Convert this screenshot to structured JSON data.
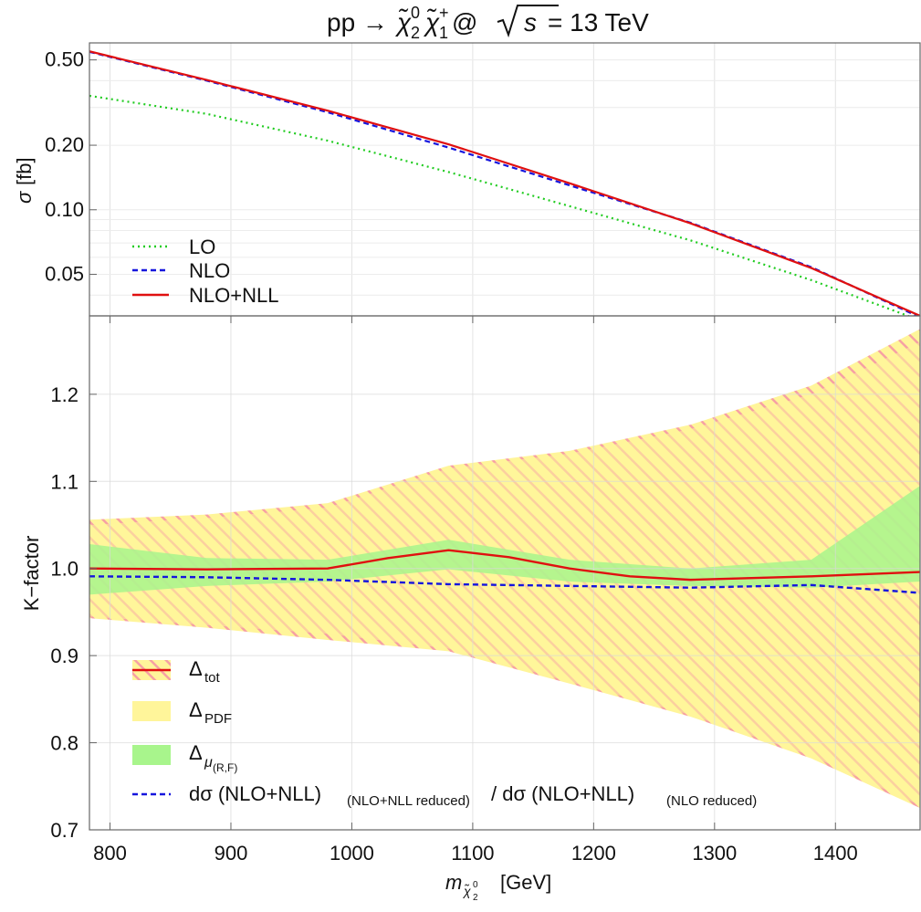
{
  "title": {
    "prefix": "pp → ",
    "p1": "χ̃",
    "p1_sub": "2",
    "p1_sup": "0",
    "p2": "χ̃",
    "p2_sub": "1",
    "p2_sup": "+",
    "at": " @ ",
    "sqrt_arg": "s",
    "energy": " = 13 TeV"
  },
  "x_axis": {
    "label_symbol": "m",
    "label_sub": "χ̃",
    "label_subsub": "2",
    "label_subsup": "0",
    "label_unit": "[GeV]"
  },
  "chart_data": [
    {
      "type": "line",
      "panel": "top",
      "ylabel_symbol": "σ",
      "ylabel_unit": "[fb]",
      "yscale": "log",
      "xlim": [
        783,
        1470
      ],
      "ylim": [
        0.032,
        0.6
      ],
      "grid": true,
      "legend_position": "bottom-left",
      "x": [
        783,
        880,
        980,
        1080,
        1180,
        1280,
        1380,
        1470
      ],
      "series": [
        {
          "name": "LO",
          "style": "dotted",
          "color": "#22cc22",
          "values": [
            0.34,
            0.28,
            0.21,
            0.15,
            0.104,
            0.072,
            0.047,
            0.0305
          ]
        },
        {
          "name": "NLO",
          "style": "dashed",
          "color": "#1515dd",
          "values": [
            0.545,
            0.4,
            0.285,
            0.195,
            0.13,
            0.087,
            0.054,
            0.0315
          ]
        },
        {
          "name": "NLO+NLL",
          "style": "solid",
          "color": "#e01010",
          "values": [
            0.548,
            0.403,
            0.29,
            0.202,
            0.133,
            0.0865,
            0.0535,
            0.032
          ]
        }
      ],
      "yticks": [
        0.05,
        0.1,
        0.2,
        0.5
      ],
      "ytick_labels": [
        "0.05",
        "0.10",
        "0.20",
        "0.50"
      ]
    },
    {
      "type": "line",
      "panel": "bottom",
      "ylabel": "K−factor",
      "xlim": [
        783,
        1470
      ],
      "ylim": [
        0.7,
        1.29
      ],
      "grid": true,
      "legend_position": "bottom-left",
      "xticks": [
        800,
        900,
        1000,
        1100,
        1200,
        1300,
        1400
      ],
      "xtick_labels": [
        "800",
        "900",
        "1000",
        "1100",
        "1200",
        "1300",
        "1400"
      ],
      "yticks": [
        0.7,
        0.8,
        0.9,
        1.0,
        1.1,
        1.2
      ],
      "ytick_labels": [
        "0.7",
        "0.8",
        "0.9",
        "1.0",
        "1.1",
        "1.2"
      ],
      "bands": [
        {
          "name": "Δtot",
          "legend_text": "Δ",
          "legend_sub": "tot",
          "color": "#f26b8a",
          "style": "hatched",
          "x": [
            783,
            880,
            980,
            1080,
            1180,
            1280,
            1380,
            1470
          ],
          "upper": [
            1.056,
            1.062,
            1.075,
            1.118,
            1.135,
            1.165,
            1.21,
            1.275
          ],
          "lower": [
            0.943,
            0.932,
            0.918,
            0.905,
            0.868,
            0.83,
            0.782,
            0.725
          ]
        },
        {
          "name": "ΔPDF",
          "legend_text": "Δ",
          "legend_sub": "PDF",
          "color": "#fff59a",
          "style": "filled",
          "x": [
            783,
            880,
            980,
            1080,
            1180,
            1280,
            1380,
            1470
          ],
          "upper": [
            1.05,
            1.058,
            1.07,
            1.115,
            1.132,
            1.16,
            1.2,
            1.26
          ],
          "lower": [
            0.945,
            0.935,
            0.925,
            0.908,
            0.87,
            0.832,
            0.785,
            0.728
          ]
        },
        {
          "name": "Δμ(R,F)",
          "legend_text": "Δ",
          "legend_sub": "μ",
          "legend_subsub": "(R,F)",
          "color": "#a8f58c",
          "style": "filled",
          "x": [
            783,
            880,
            980,
            1080,
            1180,
            1280,
            1380,
            1470
          ],
          "upper": [
            1.028,
            1.012,
            1.01,
            1.033,
            1.01,
            1.0,
            1.01,
            1.095
          ],
          "lower": [
            0.97,
            0.98,
            0.985,
            0.999,
            0.985,
            0.98,
            0.978,
            0.985
          ]
        }
      ],
      "series": [
        {
          "name": "Δtot",
          "style": "solid",
          "color": "#e01010",
          "x": [
            783,
            880,
            980,
            1030,
            1080,
            1130,
            1180,
            1230,
            1280,
            1380,
            1470
          ],
          "values": [
            1.0,
            0.999,
            1.0,
            1.012,
            1.021,
            1.013,
            1.0,
            0.991,
            0.987,
            0.991,
            0.996
          ]
        },
        {
          "name": "dσ (NLO+NLL)(NLO+NLL reduced)/ dσ (NLO+NLL)(NLO reduced)",
          "legend_text": "dσ (NLO+NLL)",
          "legend_sub1": "(NLO+NLL reduced)",
          "legend_mid": "/ dσ (NLO+NLL)",
          "legend_sub2": "(NLO reduced)",
          "style": "dashed",
          "color": "#1515dd",
          "x": [
            783,
            880,
            980,
            1080,
            1180,
            1280,
            1380,
            1470
          ],
          "values": [
            0.991,
            0.99,
            0.987,
            0.982,
            0.98,
            0.978,
            0.981,
            0.972
          ]
        }
      ]
    }
  ]
}
